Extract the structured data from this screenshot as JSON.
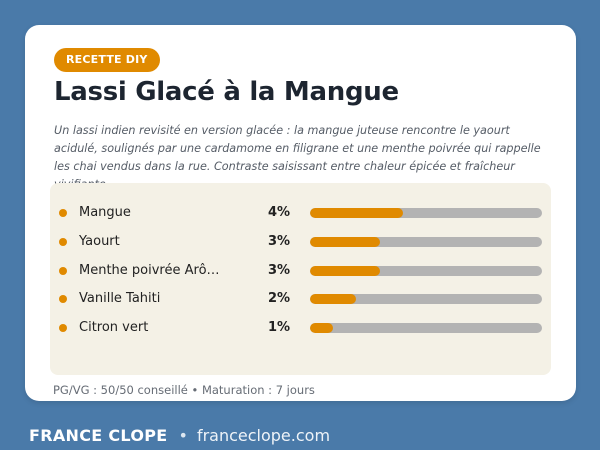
{
  "card": {
    "badge": "RECETTE DIY",
    "title": "Lassi Glacé à la Mangue",
    "description": "Un lassi indien revisité en version glacée : la mangue juteuse rencontre le yaourt acidulé, soulignés par une cardamome en filigrane et une menthe poivrée qui rappelle les chai vendus dans la rue. Contraste saisissant entre chaleur épicée et fraîcheur vivifiante.",
    "ingredients": [
      {
        "name": "Mangue",
        "percent_label": "4%",
        "bar_fraction": 0.4
      },
      {
        "name": "Yaourt",
        "percent_label": "3%",
        "bar_fraction": 0.3
      },
      {
        "name": "Menthe poivrée Arôme Concentré",
        "display_name": "Menthe poivrée Arôme…",
        "percent_label": "3%",
        "bar_fraction": 0.3
      },
      {
        "name": "Vanille Tahiti",
        "percent_label": "2%",
        "bar_fraction": 0.2
      },
      {
        "name": "Citron vert",
        "percent_label": "1%",
        "bar_fraction": 0.1
      }
    ],
    "footnote": "PG/VG : 50/50 conseillé  •  Maturation : 7 jours"
  },
  "brand": {
    "name": "FRANCE CLOPE",
    "separator": "•",
    "url": "franceclope.com"
  },
  "colors": {
    "background": "#4a7aa9",
    "accent": "#e08a00",
    "panel": "#f4f1e6",
    "track": "#b3b3b3"
  }
}
